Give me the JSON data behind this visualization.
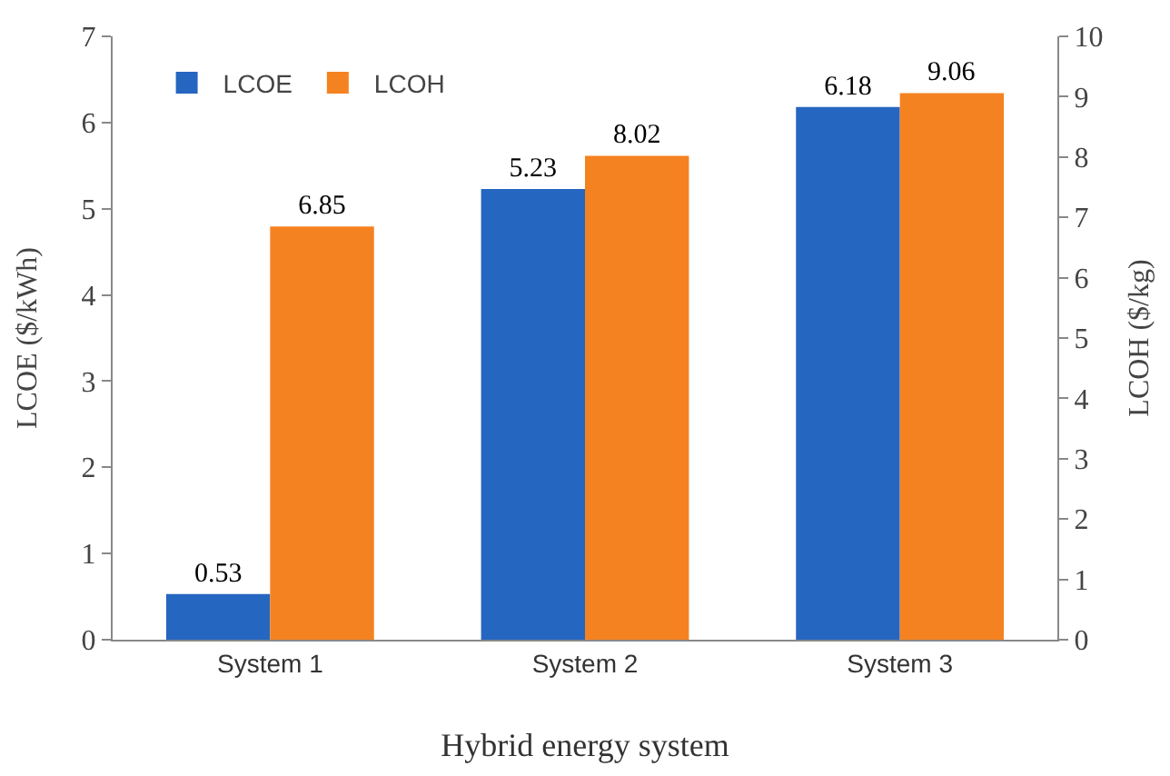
{
  "chart_data": {
    "type": "bar",
    "xlabel": "Hybrid energy system",
    "ylabel": "LCOE ($/kWh)",
    "y2label": "LCOH ($/kg)",
    "categories": [
      "System 1",
      "System 2",
      "System 3"
    ],
    "series": [
      {
        "name": "LCOE",
        "color": "#2566c0",
        "values": [
          0.53,
          5.23,
          6.18
        ]
      },
      {
        "name": "LCOH",
        "color": "#f58220",
        "values": [
          6.85,
          8.02,
          9.06
        ],
        "axis": "y2"
      }
    ],
    "ylim": [
      0,
      7
    ],
    "yticks": [
      0,
      1,
      2,
      3,
      4,
      5,
      6,
      7
    ],
    "y2lim": [
      0,
      10
    ],
    "y2ticks": [
      0,
      1,
      2,
      3,
      4,
      5,
      6,
      7,
      8,
      9,
      10
    ],
    "data_labels": true,
    "legend": "top left",
    "grid": false
  }
}
